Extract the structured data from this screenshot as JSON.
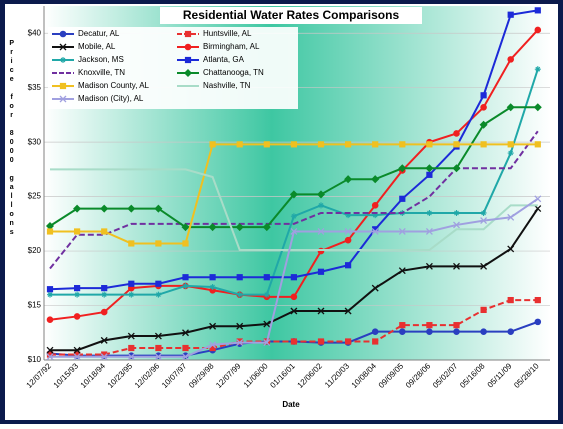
{
  "chart_data": {
    "type": "line",
    "title": "Residential Water Rates Comparisons",
    "xlabel": "Date",
    "ylabel": "Price for 8000 gallons",
    "categories": [
      "12/07/92",
      "10/15/93",
      "10/18/94",
      "10/23/95",
      "12/02/96",
      "10/07/97",
      "09/29/98",
      "12/07/99",
      "11/06/00",
      "01/16/01",
      "12/06/02",
      "11/20/03",
      "10/08/04",
      "09/09/05",
      "09/28/06",
      "05/02/07",
      "05/16/08",
      "05/11/09",
      "05/28/10"
    ],
    "ylim": [
      10,
      42.5
    ],
    "yticks": [
      {
        "value": 10,
        "label": "$10"
      },
      {
        "value": 15,
        "label": "$15"
      },
      {
        "value": 20,
        "label": "$20"
      },
      {
        "value": 25,
        "label": "$25"
      },
      {
        "value": 30,
        "label": "$30"
      },
      {
        "value": 35,
        "label": "$35"
      },
      {
        "value": 40,
        "label": "$40"
      }
    ],
    "grid": true,
    "legend": "upper left",
    "series": [
      {
        "name": "Decatur, AL",
        "color": "#2a3fc0",
        "marker": "circle",
        "dash": false,
        "values": [
          10.6,
          10.4,
          10.4,
          10.4,
          10.4,
          10.4,
          10.9,
          11.5,
          11.7,
          11.7,
          11.6,
          11.6,
          12.6,
          12.6,
          12.6,
          12.6,
          12.6,
          12.6,
          13.5
        ]
      },
      {
        "name": "Huntsville, AL",
        "color": "#e83030",
        "marker": "square",
        "dash": true,
        "values": [
          10.5,
          10.5,
          10.5,
          11.1,
          11.1,
          11.1,
          11.1,
          11.7,
          11.7,
          11.7,
          11.7,
          11.7,
          11.7,
          13.2,
          13.2,
          13.2,
          14.6,
          15.5,
          15.5
        ]
      },
      {
        "name": "Mobile, AL",
        "color": "#111111",
        "marker": "x",
        "dash": false,
        "values": [
          10.9,
          10.9,
          11.8,
          12.2,
          12.2,
          12.5,
          13.1,
          13.1,
          13.3,
          14.5,
          14.5,
          14.5,
          16.6,
          18.2,
          18.6,
          18.6,
          18.6,
          20.2,
          23.9
        ]
      },
      {
        "name": "Birmingham, AL",
        "color": "#f02020",
        "marker": "circle",
        "dash": false,
        "values": [
          13.7,
          14.0,
          14.4,
          16.6,
          16.8,
          16.8,
          16.4,
          16.0,
          15.8,
          15.8,
          20.0,
          21.0,
          24.2,
          27.4,
          30.0,
          30.8,
          33.2,
          37.6,
          40.3
        ]
      },
      {
        "name": "Jackson, MS",
        "color": "#20a8a8",
        "marker": "star",
        "dash": false,
        "values": [
          16.0,
          16.0,
          16.0,
          16.0,
          16.0,
          16.8,
          16.7,
          16.0,
          16.0,
          23.2,
          24.2,
          23.3,
          23.3,
          23.5,
          23.5,
          23.5,
          23.5,
          29.0,
          36.7
        ]
      },
      {
        "name": "Atlanta, GA",
        "color": "#1c2ad8",
        "marker": "square",
        "dash": false,
        "values": [
          16.5,
          16.6,
          16.6,
          17.0,
          17.0,
          17.6,
          17.6,
          17.6,
          17.6,
          17.6,
          18.1,
          18.7,
          22.0,
          24.8,
          27.0,
          29.6,
          34.3,
          41.7,
          42.1
        ]
      },
      {
        "name": "Knoxville, TN",
        "color": "#7030a0",
        "marker": "none",
        "dash": true,
        "values": [
          18.4,
          21.5,
          21.5,
          22.5,
          22.5,
          22.5,
          22.5,
          22.5,
          22.5,
          22.5,
          23.5,
          23.5,
          23.5,
          23.5,
          25.0,
          27.6,
          27.6,
          27.6,
          31.0
        ]
      },
      {
        "name": "Chattanooga, TN",
        "color": "#0a8a2a",
        "marker": "diamond",
        "dash": false,
        "values": [
          22.3,
          23.9,
          23.9,
          23.9,
          23.9,
          22.2,
          22.2,
          22.2,
          22.2,
          25.2,
          25.2,
          26.6,
          26.6,
          27.6,
          27.6,
          27.6,
          31.6,
          33.2,
          33.2
        ]
      },
      {
        "name": "Madison County, AL",
        "color": "#f0c020",
        "marker": "square",
        "dash": false,
        "values": [
          21.8,
          21.8,
          21.8,
          20.7,
          20.7,
          20.7,
          29.8,
          29.8,
          29.8,
          29.8,
          29.8,
          29.8,
          29.8,
          29.8,
          29.8,
          29.8,
          29.8,
          29.8,
          29.8
        ]
      },
      {
        "name": "Nashville, TN",
        "color": "#a8dcc8",
        "marker": "none",
        "dash": false,
        "values": [
          27.5,
          27.5,
          27.5,
          27.5,
          27.5,
          27.5,
          26.8,
          20.1,
          20.1,
          20.1,
          20.1,
          20.1,
          20.1,
          20.1,
          20.1,
          22.0,
          22.0,
          24.2,
          24.2
        ]
      },
      {
        "name": "Madison (City), AL",
        "color": "#a0a0e0",
        "marker": "x",
        "dash": false,
        "values": [
          10.3,
          10.3,
          10.3,
          10.3,
          10.3,
          10.3,
          11.4,
          11.6,
          11.6,
          21.8,
          21.8,
          21.8,
          21.8,
          21.8,
          21.8,
          22.4,
          22.8,
          23.1,
          24.8
        ]
      }
    ]
  }
}
